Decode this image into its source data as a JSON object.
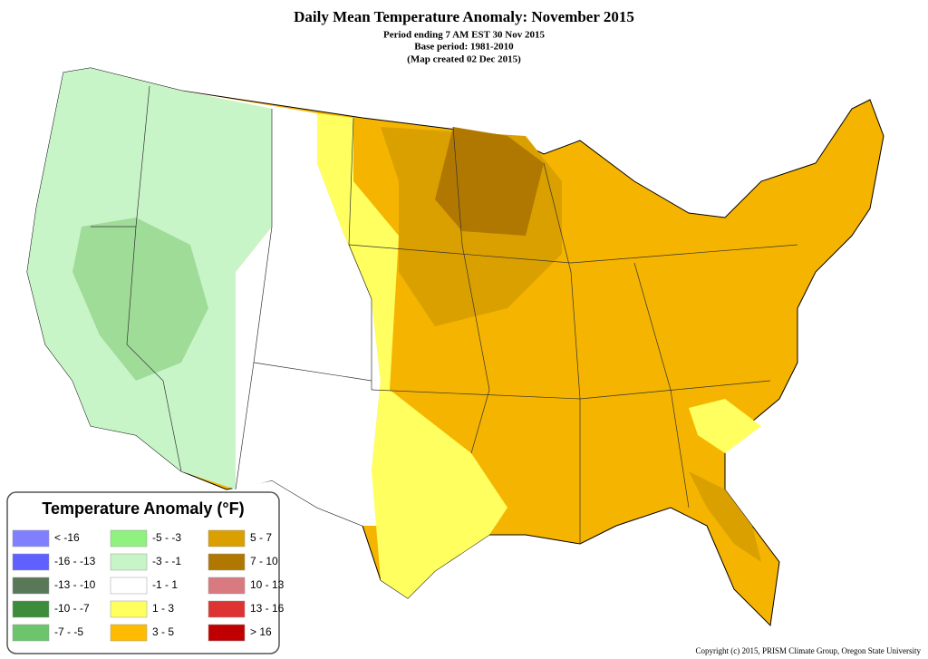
{
  "header": {
    "title": "Daily Mean Temperature Anomaly: November 2015",
    "lines": [
      "Period ending 7 AM EST 30 Nov 2015",
      "Base period: 1981-2010",
      "(Map created 02 Dec 2015)"
    ]
  },
  "legend": {
    "title": "Temperature Anomaly (°F)",
    "items": [
      {
        "label": "< -16",
        "color": "#8080ff"
      },
      {
        "label": "-16 - -13",
        "color": "#6060ff"
      },
      {
        "label": "-13 - -10",
        "color": "#587858"
      },
      {
        "label": "-10 - -7",
        "color": "#3c8c3c"
      },
      {
        "label": "-7 - -5",
        "color": "#6cc46c"
      },
      {
        "label": "-5 - -3",
        "color": "#90f080"
      },
      {
        "label": "-3 - -1",
        "color": "#c8f5c8"
      },
      {
        "label": "-1 - 1",
        "color": "#ffffff"
      },
      {
        "label": "1 - 3",
        "color": "#ffff60"
      },
      {
        "label": "3 - 5",
        "color": "#ffbb00"
      },
      {
        "label": "5 - 7",
        "color": "#d9a000"
      },
      {
        "label": "7 - 10",
        "color": "#b07800"
      },
      {
        "label": "10 - 13",
        "color": "#d87a80"
      },
      {
        "label": "13 - 16",
        "color": "#dd3333"
      },
      {
        "label": "> 16",
        "color": "#c00000"
      }
    ]
  },
  "footer": {
    "copyright": "Copyright (c) 2015, PRISM Climate Group, Oregon State University"
  }
}
